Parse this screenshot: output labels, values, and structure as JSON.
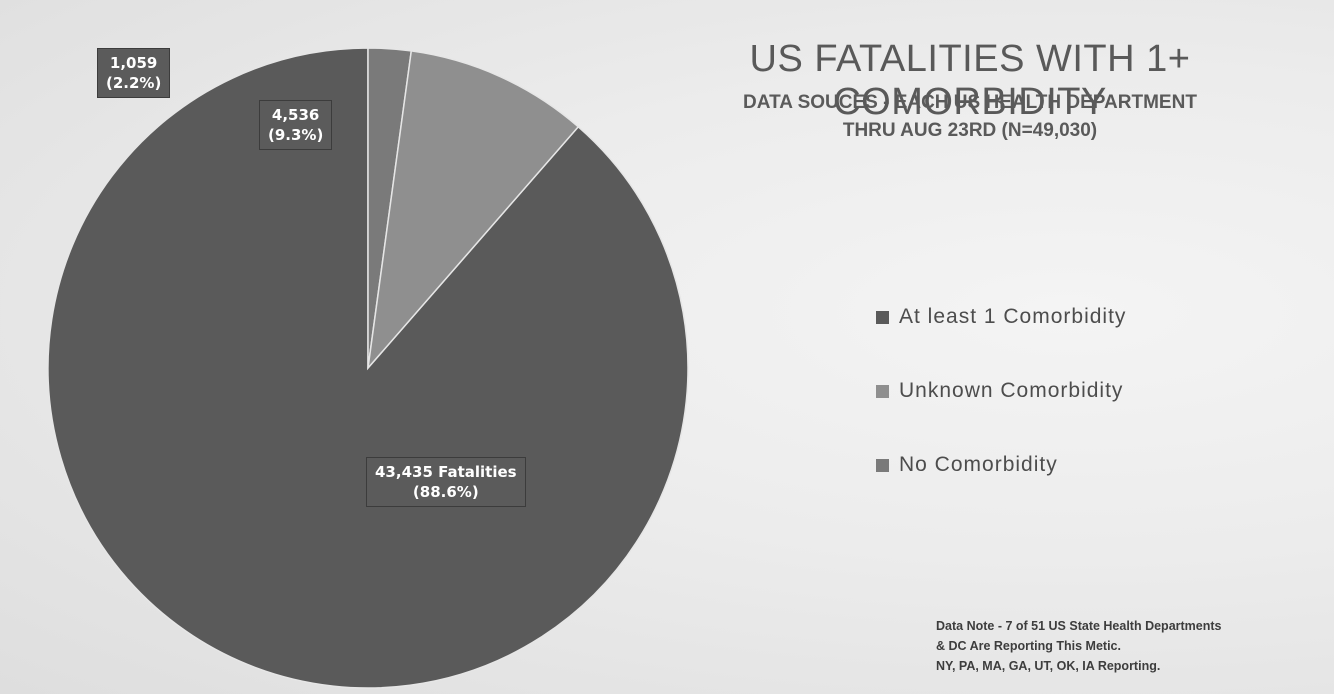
{
  "colors": {
    "at_least_1": "#5a5a5a",
    "unknown": "#8f8f8f",
    "none": "#7a7a7a",
    "background": "#ececec"
  },
  "chart_data": {
    "type": "pie",
    "title": "US FATALITIES WITH 1+ COMORBIDITY",
    "subtitle": [
      "DATA SOUCES - EACH US HEALTH DEPARTMENT",
      "THRU AUG 23RD (N=49,030)"
    ],
    "legend_position": "right",
    "slices": [
      {
        "name": "At least 1 Comorbidity",
        "value": 43435,
        "percent": 88.6,
        "label": [
          "43,435 Fatalities",
          "(88.6%)"
        ]
      },
      {
        "name": "No Comorbidity",
        "value": 1059,
        "percent": 2.2,
        "label": [
          "1,059",
          "(2.2%)"
        ]
      },
      {
        "name": "Unknown Comorbidity",
        "value": 4536,
        "percent": 9.3,
        "label": [
          "4,536",
          "(9.3%)"
        ]
      }
    ]
  },
  "legend": [
    "At least 1 Comorbidity",
    "Unknown Comorbidity",
    "No Comorbidity"
  ],
  "note": [
    "Data Note - 7 of 51 US State Health Departments",
    "& DC Are Reporting This Metic.",
    "NY, PA, MA, GA, UT, OK, IA Reporting."
  ]
}
